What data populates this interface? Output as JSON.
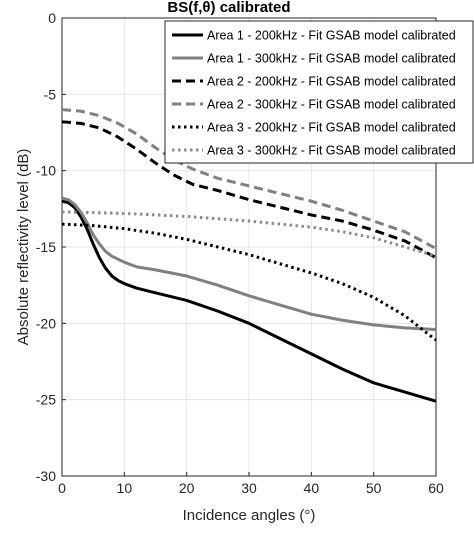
{
  "chart_data": {
    "type": "line",
    "title": "BS(f,θ) calibrated",
    "xlabel": "Incidence angles (°)",
    "ylabel": "Absolute reflectivity level (dB)",
    "xlim": [
      0,
      60
    ],
    "ylim": [
      -30,
      0
    ],
    "xticks": [
      0,
      10,
      20,
      30,
      40,
      50,
      60
    ],
    "yticks": [
      0,
      -5,
      -10,
      -15,
      -20,
      -25,
      -30
    ],
    "grid": true,
    "legend_position": "top-right",
    "series": [
      {
        "name": "Area 1 - 200kHz - Fit GSAB model calibrated",
        "color": "#000000",
        "dash": "solid",
        "x": [
          0,
          1,
          2,
          3,
          4,
          5,
          6,
          7,
          8,
          9,
          10,
          12,
          15,
          20,
          25,
          30,
          35,
          40,
          45,
          50,
          55,
          60
        ],
        "y": [
          -12.0,
          -12.1,
          -12.4,
          -13.0,
          -13.8,
          -14.8,
          -15.7,
          -16.4,
          -16.9,
          -17.2,
          -17.4,
          -17.7,
          -18.0,
          -18.5,
          -19.2,
          -20.0,
          -21.0,
          -22.0,
          -23.0,
          -23.9,
          -24.5,
          -25.1
        ]
      },
      {
        "name": "Area 1 - 300kHz - Fit GSAB model calibrated",
        "color": "#808080",
        "dash": "solid",
        "x": [
          0,
          1,
          2,
          3,
          4,
          5,
          6,
          7,
          8,
          9,
          10,
          12,
          15,
          20,
          25,
          30,
          35,
          40,
          45,
          50,
          55,
          60
        ],
        "y": [
          -11.8,
          -11.9,
          -12.2,
          -12.7,
          -13.4,
          -14.2,
          -14.8,
          -15.3,
          -15.6,
          -15.8,
          -16.0,
          -16.3,
          -16.5,
          -16.9,
          -17.5,
          -18.2,
          -18.8,
          -19.4,
          -19.8,
          -20.1,
          -20.3,
          -20.4
        ]
      },
      {
        "name": "Area 2 - 200kHz - Fit GSAB model calibrated",
        "color": "#000000",
        "dash": "long-dash",
        "x": [
          0,
          3,
          6,
          9,
          12,
          15,
          18,
          21,
          25,
          30,
          35,
          40,
          45,
          50,
          55,
          60
        ],
        "y": [
          -6.8,
          -6.9,
          -7.2,
          -7.8,
          -8.6,
          -9.5,
          -10.3,
          -10.9,
          -11.3,
          -11.9,
          -12.4,
          -12.9,
          -13.3,
          -13.9,
          -14.6,
          -15.7
        ]
      },
      {
        "name": "Area 2 - 300kHz - Fit GSAB model calibrated",
        "color": "#808080",
        "dash": "long-dash",
        "x": [
          0,
          3,
          6,
          9,
          12,
          15,
          18,
          21,
          25,
          30,
          35,
          40,
          45,
          50,
          55,
          60
        ],
        "y": [
          -6.0,
          -6.1,
          -6.4,
          -6.9,
          -7.6,
          -8.5,
          -9.3,
          -9.9,
          -10.5,
          -11.0,
          -11.5,
          -12.0,
          -12.6,
          -13.3,
          -14.0,
          -15.1
        ]
      },
      {
        "name": "Area 3 - 200kHz - Fit GSAB model calibrated",
        "color": "#000000",
        "dash": "dotted",
        "x": [
          0,
          5,
          10,
          15,
          20,
          25,
          30,
          35,
          40,
          45,
          50,
          55,
          60
        ],
        "y": [
          -13.5,
          -13.6,
          -13.8,
          -14.1,
          -14.5,
          -15.0,
          -15.5,
          -16.1,
          -16.7,
          -17.4,
          -18.3,
          -19.5,
          -21.1
        ]
      },
      {
        "name": "Area 3 - 300kHz - Fit GSAB model calibrated",
        "color": "#8c8c8c",
        "dash": "dotted",
        "x": [
          0,
          5,
          10,
          15,
          20,
          25,
          30,
          35,
          40,
          45,
          50,
          55,
          60
        ],
        "y": [
          -12.7,
          -12.75,
          -12.8,
          -12.9,
          -13.0,
          -13.15,
          -13.3,
          -13.5,
          -13.7,
          -14.0,
          -14.4,
          -15.0,
          -15.6
        ]
      }
    ]
  }
}
